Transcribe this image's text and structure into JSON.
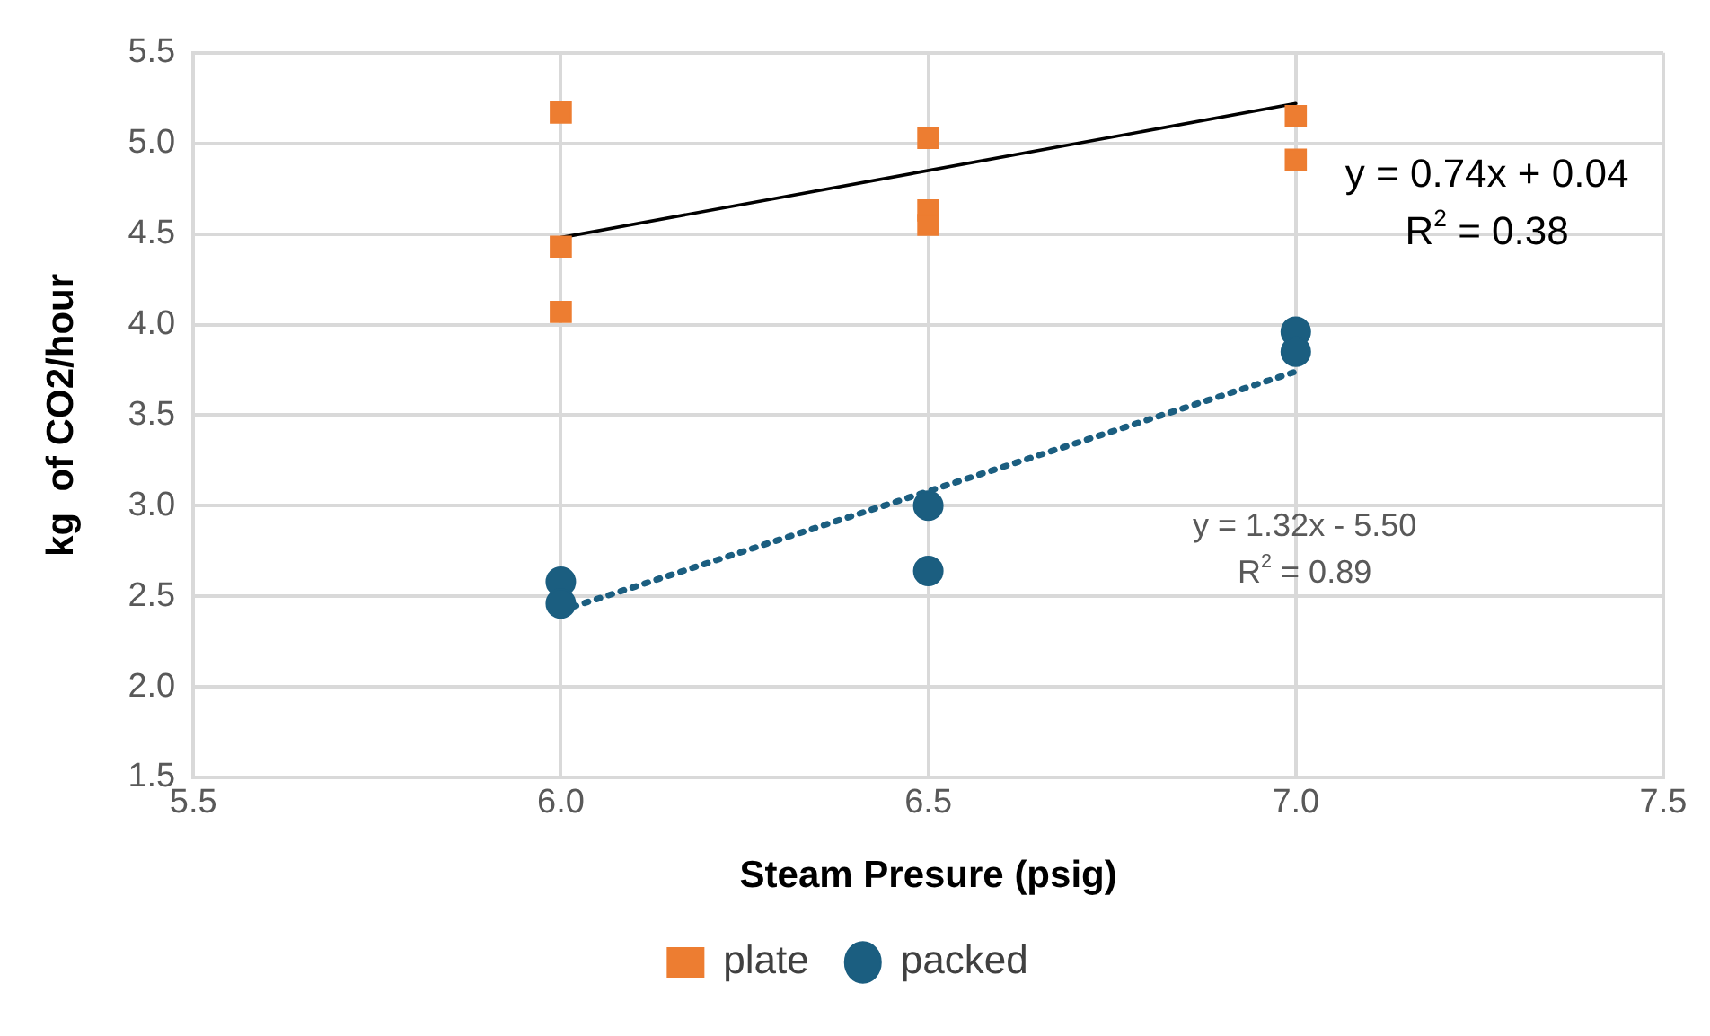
{
  "chart_data": {
    "type": "scatter",
    "xlabel": "Steam Presure (psig)",
    "ylabel": "kg  of CO2/hour",
    "xlim": [
      5.5,
      7.5
    ],
    "xticks": [
      {
        "value": 5.5,
        "label": "5.5"
      },
      {
        "value": 6,
        "label": "6.0"
      },
      {
        "value": 6.5,
        "label": "6.5"
      },
      {
        "value": 7,
        "label": "7.0"
      },
      {
        "value": 7.5,
        "label": "7.5"
      }
    ],
    "ylim": [
      1.5,
      5.5
    ],
    "yticks": [
      {
        "value": 1.5,
        "label": "1.5"
      },
      {
        "value": 2,
        "label": "2.0"
      },
      {
        "value": 2.5,
        "label": "2.5"
      },
      {
        "value": 3,
        "label": "3.0"
      },
      {
        "value": 3.5,
        "label": "3.5"
      },
      {
        "value": 4,
        "label": "4.0"
      },
      {
        "value": 4.5,
        "label": "4.5"
      },
      {
        "value": 5,
        "label": "5.0"
      },
      {
        "value": 5.5,
        "label": "5.5"
      }
    ],
    "grid": true,
    "legend": "bottom",
    "series": [
      {
        "name": "plate",
        "marker": "square",
        "color": "#ed7d31",
        "x": [
          6,
          6,
          6,
          6.5,
          6.5,
          6.5,
          7,
          7
        ],
        "values": [
          5.17,
          4.43,
          4.07,
          5.03,
          4.63,
          4.55,
          5.15,
          4.91
        ]
      },
      {
        "name": "packed",
        "marker": "circle",
        "color": "#1b5e80",
        "x": [
          6,
          6,
          6.5,
          6.5,
          7,
          7
        ],
        "values": [
          2.58,
          2.46,
          3.0,
          2.64,
          3.96,
          3.85
        ]
      },
      {
        "type": "line",
        "color": "#000000",
        "line_style": "solid",
        "x": [
          6,
          7
        ],
        "values": [
          4.48,
          5.22
        ]
      },
      {
        "type": "line",
        "color": "#1b5e80",
        "line_style": "dotted",
        "x": [
          6,
          7
        ],
        "values": [
          2.42,
          3.74
        ]
      }
    ],
    "annotations": [
      "y = 0.74x + 0.04\nR$^{2}$ = 0.38",
      "y = 1.32x - 5.50\nR$^{2}$ = 0.89"
    ]
  }
}
